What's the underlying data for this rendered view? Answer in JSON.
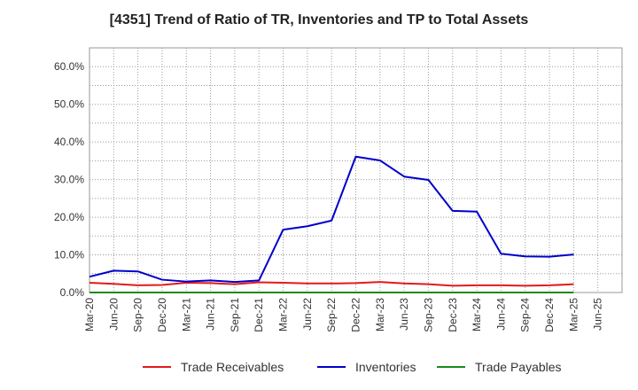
{
  "chart_data": {
    "type": "line",
    "title": "[4351]  Trend of Ratio of TR, Inventories and TP to Total Assets",
    "xlabel": "",
    "ylabel": "",
    "ylim": [
      0,
      65
    ],
    "y_ticks": [
      0,
      10,
      20,
      30,
      40,
      50,
      60
    ],
    "y_tick_suffix": "%",
    "y_tick_decimals": 1,
    "categories": [
      "Mar-20",
      "Jun-20",
      "Sep-20",
      "Dec-20",
      "Mar-21",
      "Jun-21",
      "Sep-21",
      "Dec-21",
      "Mar-22",
      "Jun-22",
      "Sep-22",
      "Dec-22",
      "Mar-23",
      "Jun-23",
      "Sep-23",
      "Dec-23",
      "Mar-24",
      "Jun-24",
      "Sep-24",
      "Dec-24",
      "Mar-25",
      "Jun-25"
    ],
    "grid": true,
    "legend_position": "bottom",
    "series": [
      {
        "name": "Trade Receivables",
        "color": "#e31a1c",
        "values": [
          2.6,
          2.3,
          1.9,
          2.0,
          2.6,
          2.5,
          2.2,
          2.7,
          2.6,
          2.4,
          2.4,
          2.5,
          2.8,
          2.4,
          2.2,
          1.8,
          1.9,
          1.9,
          1.8,
          1.9,
          2.2,
          null
        ]
      },
      {
        "name": "Inventories",
        "color": "#0000cc",
        "values": [
          4.2,
          5.8,
          5.6,
          3.4,
          2.9,
          3.2,
          2.8,
          3.2,
          16.7,
          17.6,
          19.1,
          36.1,
          35.1,
          30.8,
          29.9,
          21.7,
          21.5,
          10.3,
          9.6,
          9.5,
          10.1,
          null
        ]
      },
      {
        "name": "Trade Payables",
        "color": "#1a8a1a",
        "values": [
          0,
          0,
          0,
          0,
          0,
          0,
          0,
          0,
          0,
          0,
          0,
          0,
          0,
          0,
          0,
          0,
          0,
          0,
          0,
          0,
          0,
          null
        ]
      }
    ]
  }
}
